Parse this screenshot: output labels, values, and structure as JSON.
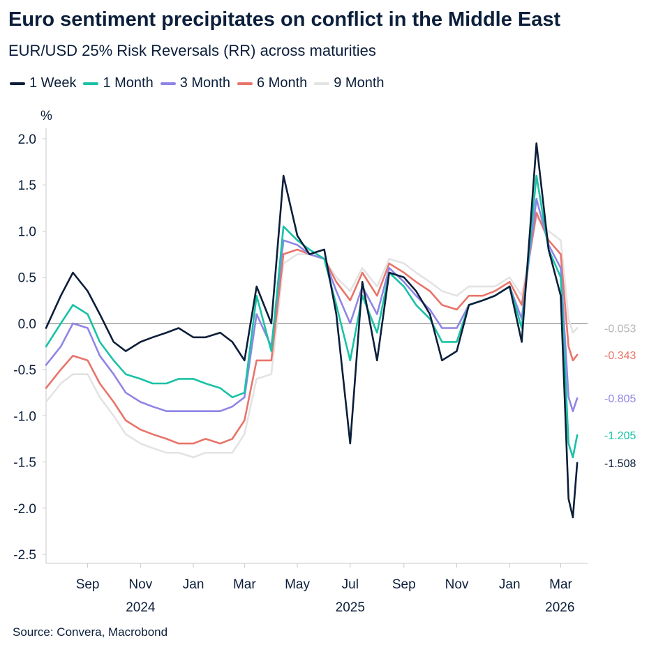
{
  "title": "Euro sentiment precipitates on conflict in the Middle East",
  "subtitle": "EUR/USD 25% Risk Reversals (RR) across maturities",
  "source": "Source: Convera, Macrobond",
  "chart_data": {
    "type": "line",
    "ylabel": "%",
    "ylim": [
      -2.5,
      2.0
    ],
    "yticks": [
      2.0,
      1.5,
      1.0,
      0.5,
      0.0,
      -0.5,
      -1.0,
      -1.5,
      -2.0,
      -2.5
    ],
    "ytick_labels": [
      "2.0",
      "1.5",
      "1.0",
      "0.5",
      "0.0",
      "-0.5",
      "-1.0",
      "-1.5",
      "-2.0",
      "-2.5"
    ],
    "xlim": [
      "2024-07-15",
      "2026-04-01"
    ],
    "xticks": [
      {
        "date": "2024-09-01",
        "label": "Sep"
      },
      {
        "date": "2024-11-01",
        "label": "Nov"
      },
      {
        "date": "2025-01-01",
        "label": "Jan"
      },
      {
        "date": "2025-03-01",
        "label": "Mar"
      },
      {
        "date": "2025-05-01",
        "label": "May"
      },
      {
        "date": "2025-07-01",
        "label": "Jul"
      },
      {
        "date": "2025-09-01",
        "label": "Sep"
      },
      {
        "date": "2025-11-01",
        "label": "Nov"
      },
      {
        "date": "2026-01-01",
        "label": "Jan"
      },
      {
        "date": "2026-03-01",
        "label": "Mar"
      }
    ],
    "year_labels": [
      {
        "date": "2024-11-01",
        "label": "2024"
      },
      {
        "date": "2025-07-01",
        "label": "2025"
      },
      {
        "date": "2026-02-28",
        "label": "2026"
      }
    ],
    "zero_line": true,
    "grid": false,
    "legend_position": "top-left",
    "x": [
      "2024-07-15",
      "2024-08-01",
      "2024-08-15",
      "2024-09-01",
      "2024-09-15",
      "2024-10-01",
      "2024-10-15",
      "2024-11-01",
      "2024-11-15",
      "2024-12-01",
      "2024-12-15",
      "2025-01-01",
      "2025-01-15",
      "2025-02-01",
      "2025-02-15",
      "2025-03-01",
      "2025-03-15",
      "2025-04-01",
      "2025-04-15",
      "2025-05-01",
      "2025-05-15",
      "2025-06-01",
      "2025-06-15",
      "2025-07-01",
      "2025-07-15",
      "2025-08-01",
      "2025-08-15",
      "2025-09-01",
      "2025-09-15",
      "2025-10-01",
      "2025-10-15",
      "2025-11-01",
      "2025-11-15",
      "2025-12-01",
      "2025-12-15",
      "2026-01-01",
      "2026-01-15",
      "2026-02-01",
      "2026-02-15",
      "2026-03-01",
      "2026-03-10",
      "2026-03-15",
      "2026-03-20"
    ],
    "series": [
      {
        "name": "1 Week",
        "color": "#0b1e3a",
        "end_label": "-1.508",
        "values": [
          -0.05,
          0.3,
          0.55,
          0.35,
          0.1,
          -0.2,
          -0.3,
          -0.2,
          -0.15,
          -0.1,
          -0.05,
          -0.15,
          -0.15,
          -0.1,
          -0.2,
          -0.4,
          0.4,
          0.0,
          1.6,
          0.95,
          0.75,
          0.8,
          0.1,
          -1.3,
          0.45,
          -0.4,
          0.55,
          0.5,
          0.35,
          0.1,
          -0.4,
          -0.3,
          0.2,
          0.25,
          0.3,
          0.4,
          -0.2,
          1.95,
          0.8,
          0.3,
          -1.9,
          -2.1,
          -1.51
        ]
      },
      {
        "name": "1 Month",
        "color": "#19c2a5",
        "end_label": "-1.205",
        "values": [
          -0.25,
          0.0,
          0.2,
          0.1,
          -0.2,
          -0.4,
          -0.55,
          -0.6,
          -0.65,
          -0.65,
          -0.6,
          -0.6,
          -0.65,
          -0.7,
          -0.8,
          -0.75,
          0.3,
          -0.3,
          1.05,
          0.9,
          0.8,
          0.7,
          0.2,
          -0.4,
          0.3,
          -0.1,
          0.55,
          0.4,
          0.2,
          0.05,
          -0.2,
          -0.2,
          0.2,
          0.25,
          0.3,
          0.4,
          -0.05,
          1.6,
          0.8,
          0.5,
          -1.3,
          -1.45,
          -1.21
        ]
      },
      {
        "name": "3 Month",
        "color": "#8f85e6",
        "end_label": "-0.805",
        "values": [
          -0.45,
          -0.25,
          0.0,
          -0.05,
          -0.35,
          -0.55,
          -0.75,
          -0.85,
          -0.9,
          -0.95,
          -0.95,
          -0.95,
          -0.95,
          -0.95,
          -0.9,
          -0.8,
          0.1,
          -0.25,
          0.9,
          0.85,
          0.75,
          0.7,
          0.35,
          0.0,
          0.4,
          0.1,
          0.6,
          0.45,
          0.3,
          0.15,
          -0.05,
          -0.05,
          0.2,
          0.25,
          0.3,
          0.4,
          0.05,
          1.35,
          0.85,
          0.6,
          -0.8,
          -0.95,
          -0.81
        ]
      },
      {
        "name": "6 Month",
        "color": "#e8746a",
        "end_label": "-0.343",
        "values": [
          -0.7,
          -0.5,
          -0.35,
          -0.4,
          -0.65,
          -0.85,
          -1.05,
          -1.15,
          -1.2,
          -1.25,
          -1.3,
          -1.3,
          -1.25,
          -1.3,
          -1.25,
          -1.05,
          -0.4,
          -0.4,
          0.75,
          0.8,
          0.75,
          0.7,
          0.45,
          0.25,
          0.55,
          0.3,
          0.65,
          0.55,
          0.45,
          0.35,
          0.2,
          0.15,
          0.3,
          0.3,
          0.35,
          0.45,
          0.2,
          1.2,
          0.9,
          0.75,
          -0.25,
          -0.4,
          -0.34
        ]
      },
      {
        "name": "9 Month",
        "color": "#e3e3e3",
        "end_label": "-0.053",
        "values": [
          -0.85,
          -0.65,
          -0.55,
          -0.55,
          -0.8,
          -1.0,
          -1.2,
          -1.3,
          -1.35,
          -1.4,
          -1.4,
          -1.45,
          -1.4,
          -1.4,
          -1.4,
          -1.2,
          -0.6,
          -0.55,
          0.65,
          0.75,
          0.75,
          0.7,
          0.5,
          0.35,
          0.6,
          0.4,
          0.7,
          0.65,
          0.55,
          0.45,
          0.35,
          0.3,
          0.4,
          0.4,
          0.4,
          0.5,
          0.3,
          1.15,
          1.0,
          0.9,
          0.05,
          -0.1,
          -0.05
        ]
      }
    ]
  }
}
